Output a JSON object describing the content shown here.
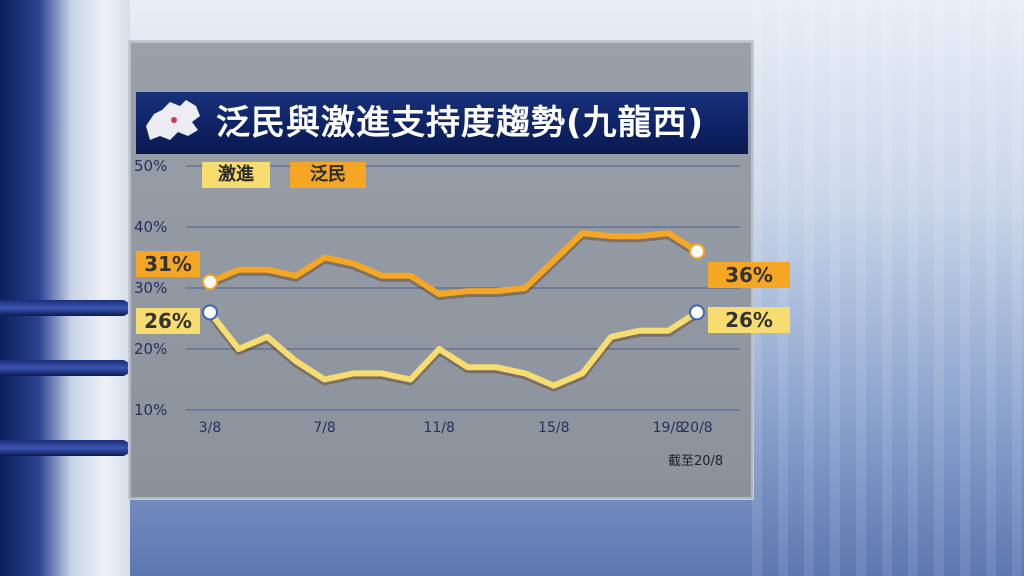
{
  "title": "泛民與激進支持度趨勢(九龍西)",
  "footnote": "截至20/8",
  "legend": [
    {
      "label": "激進",
      "color": "#f7dc6f"
    },
    {
      "label": "泛民",
      "color": "#f5a623"
    }
  ],
  "start_labels": {
    "pan_democrats": "31%",
    "radicals": "26%"
  },
  "end_labels": {
    "pan_democrats": "36%",
    "radicals": "26%"
  },
  "chart_data": {
    "type": "line",
    "x": [
      "3/8",
      "4/8",
      "5/8",
      "6/8",
      "7/8",
      "8/8",
      "9/8",
      "10/8",
      "11/8",
      "12/8",
      "13/8",
      "14/8",
      "15/8",
      "16/8",
      "17/8",
      "18/8",
      "19/8",
      "20/8"
    ],
    "tick_labels": [
      "3/8",
      "7/8",
      "11/8",
      "15/8",
      "19/8",
      "20/8"
    ],
    "y_ticks": [
      "10%",
      "20%",
      "30%",
      "40%",
      "50%"
    ],
    "ylim": [
      10,
      50
    ],
    "series": [
      {
        "name": "泛民",
        "color": "#f5a623",
        "values": [
          31,
          33,
          33,
          32,
          35,
          34,
          32,
          32,
          29,
          29.5,
          29.5,
          30,
          34.5,
          39,
          38.5,
          38.5,
          39,
          36
        ]
      },
      {
        "name": "激進",
        "color": "#f7dc6f",
        "values": [
          26,
          20,
          22,
          18,
          15,
          16,
          16,
          15,
          20,
          17,
          17,
          16,
          14,
          16,
          22,
          23,
          23,
          26
        ]
      }
    ]
  }
}
